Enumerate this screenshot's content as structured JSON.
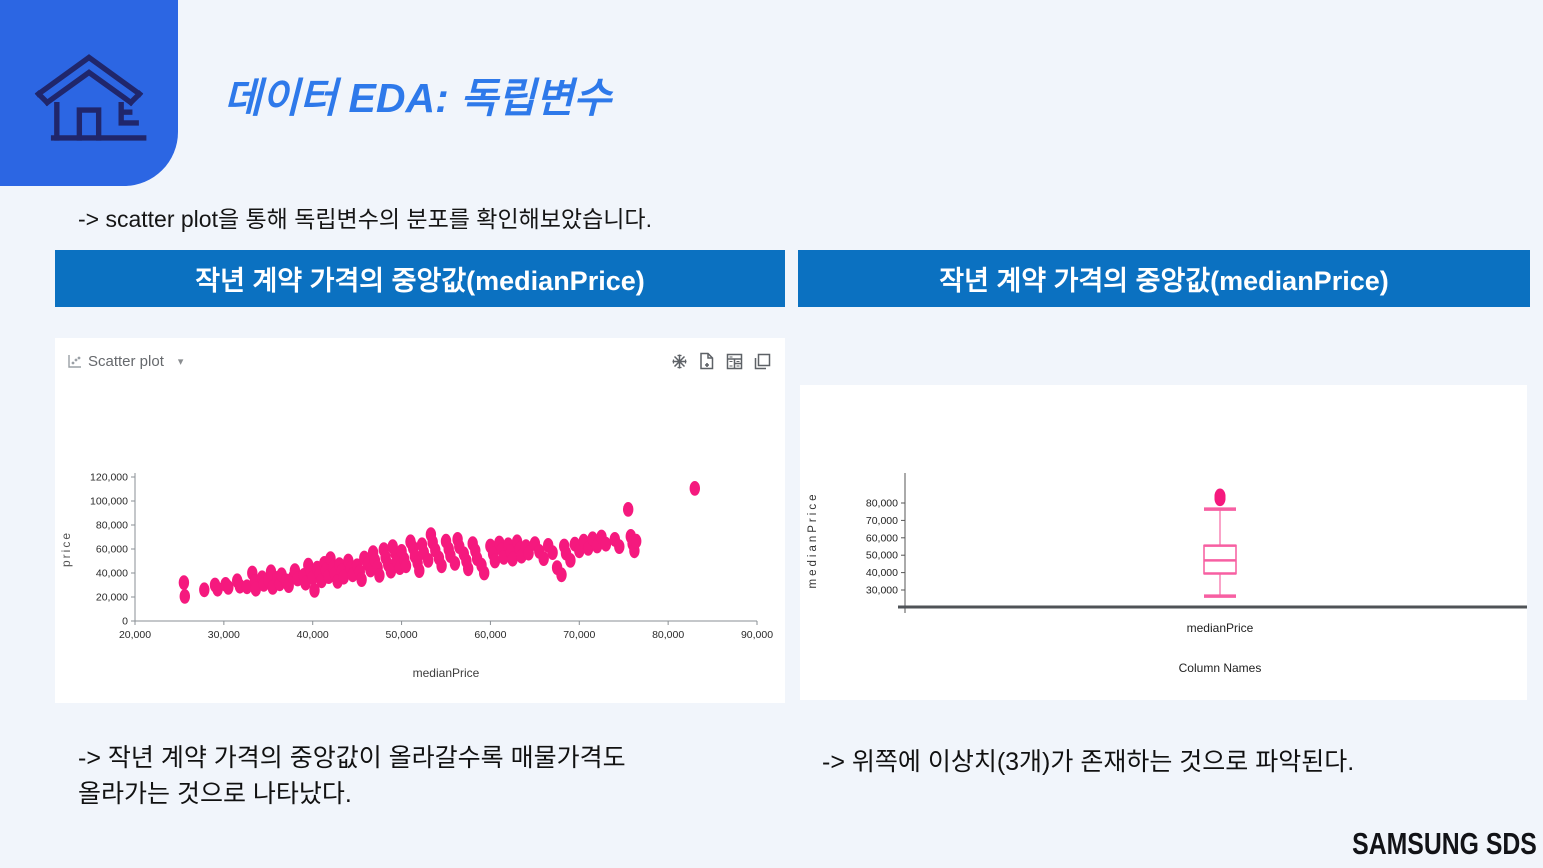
{
  "header": {
    "title": "데이터 EDA: 독립변수"
  },
  "intro": {
    "text": "-> scatter plot을 통해 독립변수의 분포를 확인해보았습니다."
  },
  "panels": {
    "left": {
      "header": "작년 계약 가격의 중앙값(medianPrice)",
      "widget_title": "Scatter plot",
      "caret": "▾",
      "note_lines": {
        "0": "-> 작년 계약 가격의 중앙값이 올라갈수록 매물가격도",
        "1": "올라가는 것으로 나타났다."
      }
    },
    "right": {
      "header": "작년 계약 가격의 중앙값(medianPrice)",
      "note": "-> 위쪽에 이상치(3개)가 존재하는 것으로 파악된다."
    }
  },
  "footer": {
    "logo": "SAMSUNG SDS"
  },
  "colors": {
    "background": "#F1F5FB",
    "tile_blue": "#2C66E3",
    "title_blue": "#2E79EA",
    "bar_blue": "#0B71C1",
    "point_pink": "#F5197E",
    "box_pink_light": "#F884B6",
    "box_pink_strong": "#F75FA2",
    "axis_gray": "#8a8f94",
    "baseline_gray": "#4f5357",
    "icon_navy": "#20266B"
  },
  "chart_data": [
    {
      "type": "scatter",
      "title": "Scatter plot",
      "xlabel": "medianPrice",
      "ylabel": "price",
      "xlim": [
        20000,
        90000
      ],
      "ylim": [
        0,
        120000
      ],
      "xticks": [
        20000,
        30000,
        40000,
        50000,
        60000,
        70000,
        80000,
        90000
      ],
      "yticks": [
        0,
        20000,
        40000,
        60000,
        80000,
        100000,
        120000
      ],
      "grid": false,
      "legend": "none",
      "color": "#F5197E",
      "points": [
        [
          25500,
          32000
        ],
        [
          25600,
          20500
        ],
        [
          27800,
          26000
        ],
        [
          29000,
          30000
        ],
        [
          29300,
          26500
        ],
        [
          30200,
          30500
        ],
        [
          30500,
          28000
        ],
        [
          31500,
          33500
        ],
        [
          31800,
          29000
        ],
        [
          32600,
          28500
        ],
        [
          33200,
          40000
        ],
        [
          33500,
          33000
        ],
        [
          33600,
          26500
        ],
        [
          34300,
          36000
        ],
        [
          34500,
          30500
        ],
        [
          35000,
          34000
        ],
        [
          35300,
          41000
        ],
        [
          35500,
          28000
        ],
        [
          36000,
          35500
        ],
        [
          36300,
          31000
        ],
        [
          36500,
          38500
        ],
        [
          37000,
          33500
        ],
        [
          37300,
          29500
        ],
        [
          37800,
          36500
        ],
        [
          38000,
          42000
        ],
        [
          38300,
          35000
        ],
        [
          39000,
          38000
        ],
        [
          39200,
          31500
        ],
        [
          39500,
          46500
        ],
        [
          39800,
          41000
        ],
        [
          40000,
          36000
        ],
        [
          40200,
          25500
        ],
        [
          40500,
          44000
        ],
        [
          40800,
          39000
        ],
        [
          41000,
          33500
        ],
        [
          41300,
          48000
        ],
        [
          41500,
          42500
        ],
        [
          41800,
          37000
        ],
        [
          42000,
          52000
        ],
        [
          42300,
          44500
        ],
        [
          42500,
          39500
        ],
        [
          42800,
          33000
        ],
        [
          43000,
          47000
        ],
        [
          43300,
          42000
        ],
        [
          43500,
          36500
        ],
        [
          44000,
          50000
        ],
        [
          44300,
          44000
        ],
        [
          44500,
          38500
        ],
        [
          45000,
          46000
        ],
        [
          45300,
          41000
        ],
        [
          45500,
          34500
        ],
        [
          45800,
          52500
        ],
        [
          46200,
          47500
        ],
        [
          46500,
          42500
        ],
        [
          46800,
          57000
        ],
        [
          47000,
          50500
        ],
        [
          47300,
          44500
        ],
        [
          47500,
          38000
        ],
        [
          48000,
          59500
        ],
        [
          48200,
          53000
        ],
        [
          48500,
          47000
        ],
        [
          48800,
          41500
        ],
        [
          49000,
          62000
        ],
        [
          49300,
          56500
        ],
        [
          49500,
          50000
        ],
        [
          49800,
          44500
        ],
        [
          50000,
          58000
        ],
        [
          50300,
          51500
        ],
        [
          50500,
          46000
        ],
        [
          51000,
          66000
        ],
        [
          51300,
          61000
        ],
        [
          51500,
          54000
        ],
        [
          51800,
          48500
        ],
        [
          52000,
          42000
        ],
        [
          52300,
          63500
        ],
        [
          52500,
          57000
        ],
        [
          53000,
          50500
        ],
        [
          53300,
          72000
        ],
        [
          53500,
          65500
        ],
        [
          53800,
          59000
        ],
        [
          54200,
          52500
        ],
        [
          54500,
          46000
        ],
        [
          55000,
          66500
        ],
        [
          55300,
          60000
        ],
        [
          55500,
          54500
        ],
        [
          56000,
          48000
        ],
        [
          56300,
          68000
        ],
        [
          56500,
          62000
        ],
        [
          57000,
          56000
        ],
        [
          57300,
          50000
        ],
        [
          57500,
          43500
        ],
        [
          58000,
          64500
        ],
        [
          58300,
          58500
        ],
        [
          58500,
          52000
        ],
        [
          59000,
          46500
        ],
        [
          59300,
          40000
        ],
        [
          60000,
          62500
        ],
        [
          60300,
          56000
        ],
        [
          60500,
          50000
        ],
        [
          61000,
          65000
        ],
        [
          61300,
          59500
        ],
        [
          61500,
          53000
        ],
        [
          62000,
          63500
        ],
        [
          62300,
          57500
        ],
        [
          62500,
          51500
        ],
        [
          63000,
          66000
        ],
        [
          63300,
          60000
        ],
        [
          63500,
          54000
        ],
        [
          64000,
          62000
        ],
        [
          64300,
          56500
        ],
        [
          65000,
          64500
        ],
        [
          65500,
          58000
        ],
        [
          66000,
          52000
        ],
        [
          66500,
          63000
        ],
        [
          67000,
          57000
        ],
        [
          67500,
          44500
        ],
        [
          68000,
          38500
        ],
        [
          68300,
          62500
        ],
        [
          68500,
          56500
        ],
        [
          69000,
          50500
        ],
        [
          69500,
          64000
        ],
        [
          70000,
          58500
        ],
        [
          70500,
          66500
        ],
        [
          71000,
          60500
        ],
        [
          71500,
          68500
        ],
        [
          72000,
          62500
        ],
        [
          72500,
          70000
        ],
        [
          73000,
          64000
        ],
        [
          74000,
          68000
        ],
        [
          74500,
          62000
        ],
        [
          75500,
          93000
        ],
        [
          75800,
          70500
        ],
        [
          76000,
          64500
        ],
        [
          76200,
          58500
        ],
        [
          76400,
          66500
        ],
        [
          83000,
          110500
        ]
      ]
    },
    {
      "type": "boxplot",
      "ylabel": "medianPrice",
      "xlabel": "Column Names",
      "categories": [
        "medianPrice"
      ],
      "yticks": [
        30000,
        40000,
        50000,
        60000,
        70000,
        80000
      ],
      "grid": false,
      "color": "#F5197E",
      "series": [
        {
          "name": "medianPrice",
          "whisker_low": 26500,
          "q1": 39500,
          "median": 47000,
          "q3": 55500,
          "whisker_high": 76500,
          "outliers": [
            82500,
            83200,
            84000
          ],
          "outlier_count_note": "3"
        }
      ]
    }
  ]
}
